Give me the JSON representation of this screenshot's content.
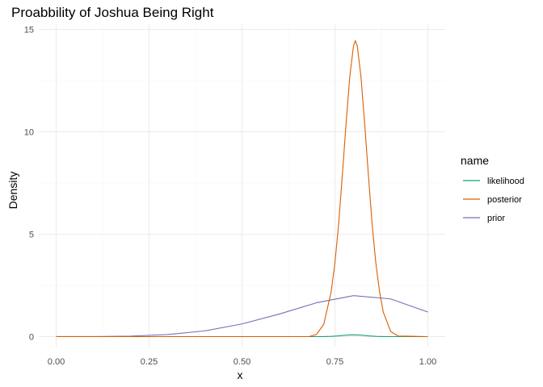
{
  "chart_data": {
    "type": "line",
    "title": "Proabbility of Joshua Being Right",
    "xlabel": "x",
    "ylabel": "Density",
    "xlim": [
      0,
      1
    ],
    "ylim": [
      0,
      15
    ],
    "x_ticks": [
      0,
      0.25,
      0.5,
      0.75,
      1
    ],
    "x_tick_labels": [
      "0.00",
      "0.25",
      "0.50",
      "0.75",
      "1.00"
    ],
    "y_ticks": [
      0,
      5,
      10,
      15
    ],
    "y_tick_labels": [
      "0",
      "5",
      "10",
      "15"
    ],
    "grid": true,
    "legend": {
      "title": "name",
      "position": "right"
    },
    "series": [
      {
        "name": "likelihood",
        "color": "#1b9e77",
        "x": [
          0.0,
          0.7,
          0.72,
          0.74,
          0.76,
          0.78,
          0.8,
          0.82,
          0.84,
          0.86,
          0.88,
          0.9,
          0.92,
          1.0
        ],
        "y": [
          0,
          0,
          0.003,
          0.013,
          0.036,
          0.07,
          0.087,
          0.07,
          0.036,
          0.013,
          0.003,
          0.0005,
          0,
          0
        ]
      },
      {
        "name": "posterior",
        "color": "#d95f02",
        "x": [
          0.0,
          0.68,
          0.7,
          0.72,
          0.74,
          0.75,
          0.76,
          0.77,
          0.78,
          0.79,
          0.8,
          0.805,
          0.81,
          0.82,
          0.83,
          0.84,
          0.85,
          0.86,
          0.87,
          0.88,
          0.9,
          0.92,
          1.0
        ],
        "y": [
          0,
          0,
          0.1,
          0.6,
          2.2,
          3.6,
          5.5,
          7.9,
          10.4,
          12.7,
          14.2,
          14.45,
          14.2,
          12.7,
          10.4,
          7.9,
          5.5,
          3.6,
          2.2,
          1.2,
          0.25,
          0.03,
          0
        ]
      },
      {
        "name": "prior",
        "color": "#7570b3",
        "x": [
          0.0,
          0.1,
          0.2,
          0.3,
          0.4,
          0.5,
          0.6,
          0.7,
          0.8,
          0.9,
          1.0
        ],
        "y": [
          0.001,
          0.004,
          0.025,
          0.1,
          0.28,
          0.62,
          1.1,
          1.65,
          2.0,
          1.84,
          1.2
        ]
      }
    ]
  }
}
